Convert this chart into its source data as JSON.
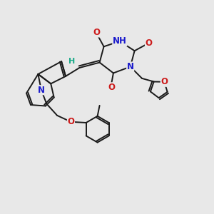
{
  "bg_color": "#e8e8e8",
  "bond_color": "#1a1a1a",
  "bond_width": 1.4,
  "atom_colors": {
    "N": "#1a1acc",
    "O": "#cc1a1a",
    "H": "#1aaa88",
    "C": "#1a1a1a"
  },
  "font_size_atom": 8.5,
  "xlim": [
    0,
    10
  ],
  "ylim": [
    0,
    10
  ],
  "figsize": [
    3.0,
    3.0
  ],
  "dpi": 100
}
